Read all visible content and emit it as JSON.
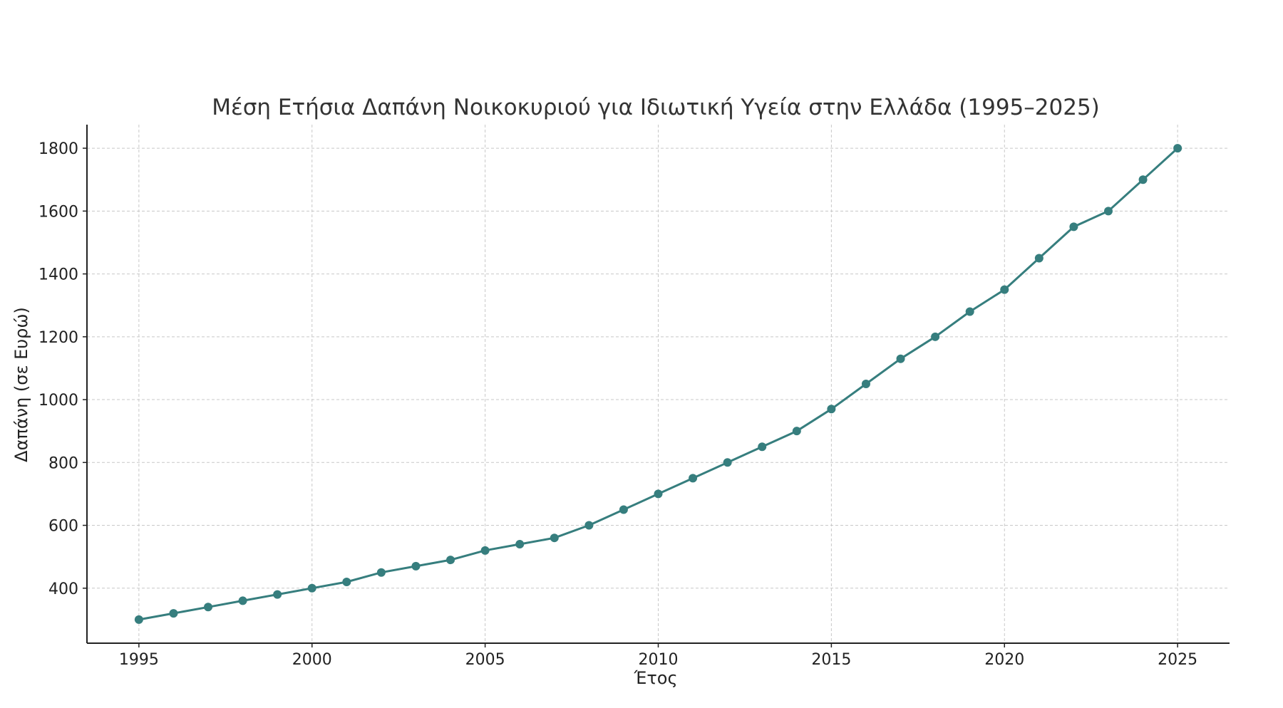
{
  "chart_data": {
    "type": "line",
    "title": "Μέση Ετήσια Δαπάνη Νοικοκυριού για Ιδιωτική Υγεία στην Ελλάδα (1995–2025)",
    "xlabel": "Έτος",
    "ylabel": "Δαπάνη (σε Ευρώ)",
    "x": [
      1995,
      1996,
      1997,
      1998,
      1999,
      2000,
      2001,
      2002,
      2003,
      2004,
      2005,
      2006,
      2007,
      2008,
      2009,
      2010,
      2011,
      2012,
      2013,
      2014,
      2015,
      2016,
      2017,
      2018,
      2019,
      2020,
      2021,
      2022,
      2023,
      2024,
      2025
    ],
    "series": [
      {
        "values": [
          300,
          320,
          340,
          360,
          380,
          400,
          420,
          450,
          470,
          490,
          520,
          540,
          560,
          600,
          650,
          700,
          750,
          800,
          850,
          900,
          970,
          1050,
          1130,
          1200,
          1280,
          1350,
          1450,
          1550,
          1600,
          1700,
          1800
        ],
        "color": "#367e7e"
      }
    ],
    "xticks": [
      "1995",
      "2000",
      "2005",
      "2010",
      "2015",
      "2020",
      "2025"
    ],
    "yticks": [
      "400",
      "600",
      "800",
      "1000",
      "1200",
      "1400",
      "1600",
      "1800"
    ],
    "xlim": [
      1993.5,
      2026.5
    ],
    "ylim": [
      225,
      1875
    ],
    "grid": true,
    "legend": "none",
    "marker": "circle"
  }
}
